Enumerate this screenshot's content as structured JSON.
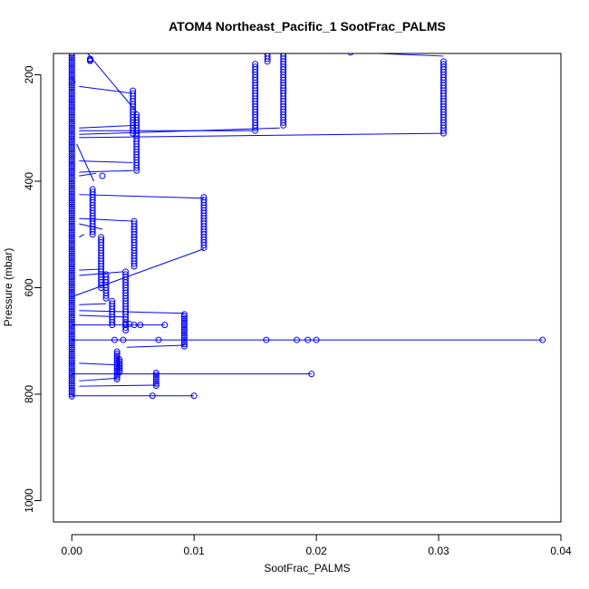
{
  "chart_data": {
    "type": "scatter",
    "title": "ATOM4 Northeast_Pacific_1 SootFrac_PALMS",
    "xlabel": "SootFrac_PALMS",
    "ylabel": "Pressure (mbar)",
    "xlim": [
      -0.0015,
      0.04
    ],
    "ylim": [
      1040,
      160
    ],
    "y_reversed": true,
    "xticks": [
      0.0,
      0.01,
      0.02,
      0.03,
      0.04
    ],
    "xtick_labels": [
      "0.00",
      "0.01",
      "0.02",
      "0.03",
      "0.04"
    ],
    "yticks": [
      200,
      400,
      600,
      800,
      1000
    ],
    "ytick_labels": [
      "200",
      "400",
      "600",
      "800",
      "1000"
    ],
    "grid": false,
    "colors": {
      "series": "#0000ff",
      "frame": "#000000"
    },
    "zero_column": {
      "x": 0.0,
      "pressure_range": [
        160,
        805
      ],
      "step": 4
    },
    "columns": [
      {
        "x": 0.0015,
        "pressure_range": [
          170,
          175
        ],
        "step": 2
      },
      {
        "x": 0.0017,
        "pressure_range": [
          415,
          500
        ],
        "step": 5
      },
      {
        "x": 0.0024,
        "pressure_range": [
          505,
          600
        ],
        "step": 5
      },
      {
        "x": 0.0028,
        "pressure_range": [
          575,
          620
        ],
        "step": 5
      },
      {
        "x": 0.0033,
        "pressure_range": [
          625,
          670
        ],
        "step": 5
      },
      {
        "x": 0.0037,
        "pressure_range": [
          720,
          775
        ],
        "step": 4
      },
      {
        "x": 0.0039,
        "pressure_range": [
          735,
          760
        ],
        "step": 4
      },
      {
        "x": 0.0044,
        "pressure_range": [
          570,
          680
        ],
        "step": 5
      },
      {
        "x": 0.005,
        "pressure_range": [
          230,
          310
        ],
        "step": 5
      },
      {
        "x": 0.0053,
        "pressure_range": [
          275,
          380
        ],
        "step": 5
      },
      {
        "x": 0.0051,
        "pressure_range": [
          475,
          560
        ],
        "step": 5
      },
      {
        "x": 0.0069,
        "pressure_range": [
          760,
          785
        ],
        "step": 4
      },
      {
        "x": 0.0092,
        "pressure_range": [
          650,
          710
        ],
        "step": 4
      },
      {
        "x": 0.0108,
        "pressure_range": [
          430,
          525
        ],
        "step": 5
      },
      {
        "x": 0.015,
        "pressure_range": [
          180,
          305
        ],
        "step": 5
      },
      {
        "x": 0.016,
        "pressure_range": [
          160,
          175
        ],
        "step": 5
      },
      {
        "x": 0.0173,
        "pressure_range": [
          160,
          295
        ],
        "step": 5
      },
      {
        "x": 0.0304,
        "pressure_range": [
          175,
          310
        ],
        "step": 5
      }
    ],
    "points": [
      [
        0.0025,
        390
      ],
      [
        0.0044,
        668
      ],
      [
        0.0047,
        668
      ],
      [
        0.0051,
        670
      ],
      [
        0.0056,
        670
      ],
      [
        0.0076,
        670
      ],
      [
        0.0035,
        698
      ],
      [
        0.0042,
        698
      ],
      [
        0.0071,
        698
      ],
      [
        0.0159,
        698
      ],
      [
        0.0184,
        698
      ],
      [
        0.0193,
        698
      ],
      [
        0.02,
        698
      ],
      [
        0.0385,
        698
      ],
      [
        0.0196,
        762
      ],
      [
        0.0066,
        803
      ],
      [
        0.01,
        803
      ],
      [
        0.0228,
        158
      ]
    ],
    "segments": [
      [
        0.0003,
        160,
        0.0025,
        160
      ],
      [
        0.0013,
        160,
        0.0053,
        270
      ],
      [
        0.0,
        205,
        0.0003,
        215
      ],
      [
        0.0006,
        222,
        0.005,
        235
      ],
      [
        0.0006,
        300,
        0.0053,
        295
      ],
      [
        0.0006,
        305,
        0.0148,
        305
      ],
      [
        0.0006,
        312,
        0.017,
        300
      ],
      [
        0.0006,
        318,
        0.0304,
        310
      ],
      [
        0.0004,
        330,
        0.0018,
        400
      ],
      [
        0.0006,
        362,
        0.005,
        365
      ],
      [
        0.0006,
        383,
        0.005,
        380
      ],
      [
        0.0006,
        390,
        0.002,
        385
      ],
      [
        0.0006,
        425,
        0.0108,
        432
      ],
      [
        0.0006,
        470,
        0.005,
        475
      ],
      [
        0.0006,
        480,
        0.0025,
        490
      ],
      [
        0.0006,
        505,
        0.001,
        500
      ],
      [
        0.0006,
        567,
        0.0025,
        565
      ],
      [
        0.0006,
        577,
        0.0042,
        570
      ],
      [
        0.0,
        617,
        0.0108,
        527
      ],
      [
        0.0006,
        632,
        0.0028,
        630
      ],
      [
        0.0006,
        643,
        0.0092,
        648
      ],
      [
        0.0006,
        652,
        0.0044,
        655
      ],
      [
        0.0,
        670,
        0.0076,
        670
      ],
      [
        0.0,
        698,
        0.0385,
        698
      ],
      [
        0.0045,
        712,
        0.0092,
        708
      ],
      [
        0.0006,
        742,
        0.0037,
        745
      ],
      [
        0.0,
        762,
        0.0196,
        762
      ],
      [
        0.0006,
        775,
        0.0037,
        770
      ],
      [
        0.0006,
        785,
        0.0069,
        783
      ],
      [
        0.0,
        803,
        0.01,
        803
      ],
      [
        0.0229,
        158,
        0.0304,
        165
      ]
    ]
  }
}
